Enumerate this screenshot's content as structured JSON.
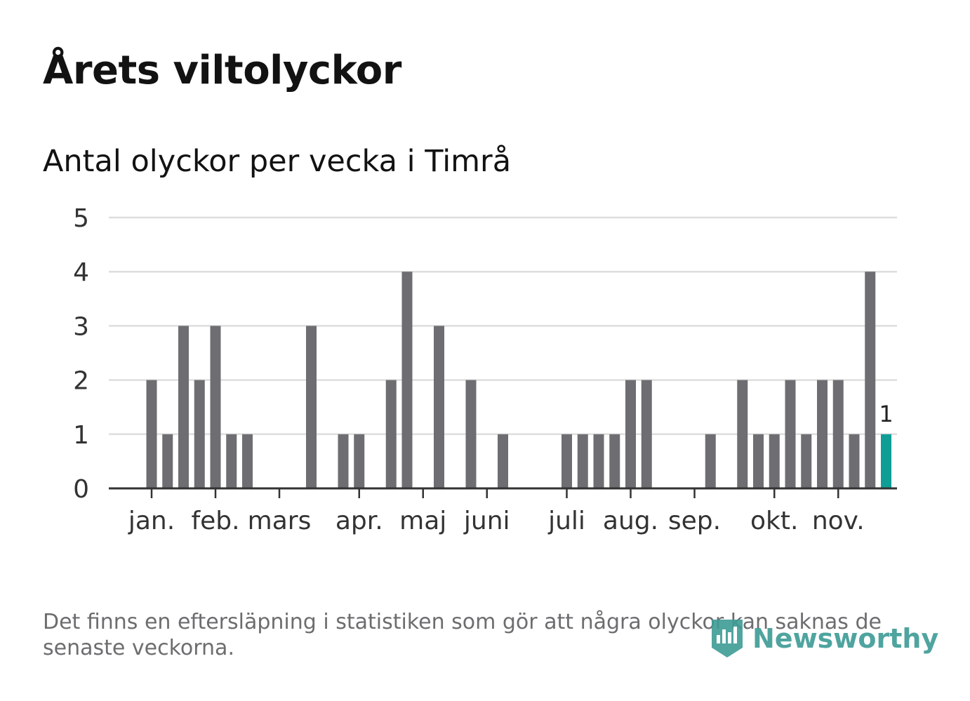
{
  "title": "Årets viltolyckor",
  "subtitle": "Antal olyckor per vecka i Timrå",
  "note": "Det finns en eftersläpning i statistiken som gör att några olyckor kan saknas de senaste veckorna.",
  "brand": "Newsworthy",
  "colors": {
    "bar": "#6e6d72",
    "highlight": "#0f9e95",
    "grid": "#dedede",
    "axis": "#333333",
    "brand": "#3d9b95"
  },
  "chart_data": {
    "type": "bar",
    "title": "Antal olyckor per vecka i Timrå",
    "xlabel": "",
    "ylabel": "",
    "ylim": [
      0,
      5
    ],
    "yticks": [
      "0",
      "1",
      "2",
      "3",
      "4",
      "5"
    ],
    "week_range": [
      1,
      47
    ],
    "weeks": [
      1,
      2,
      3,
      4,
      5,
      6,
      7,
      8,
      9,
      10,
      11,
      12,
      13,
      14,
      15,
      16,
      17,
      18,
      19,
      20,
      21,
      22,
      23,
      24,
      25,
      26,
      27,
      28,
      29,
      30,
      31,
      32,
      33,
      34,
      35,
      36,
      37,
      38,
      39,
      40,
      41,
      42,
      43,
      44,
      45,
      46,
      47
    ],
    "values": [
      2,
      1,
      3,
      2,
      3,
      1,
      1,
      0,
      0,
      0,
      3,
      0,
      1,
      1,
      0,
      2,
      4,
      0,
      3,
      0,
      2,
      0,
      1,
      0,
      0,
      0,
      1,
      1,
      1,
      1,
      2,
      2,
      0,
      0,
      0,
      1,
      0,
      2,
      1,
      1,
      2,
      1,
      2,
      2,
      1,
      4,
      1
    ],
    "highlight_last": true,
    "highlight_label": "1",
    "months": [
      {
        "label": "jan.",
        "week": 1
      },
      {
        "label": "feb.",
        "week": 5
      },
      {
        "label": "mars",
        "week": 9
      },
      {
        "label": "apr.",
        "week": 14
      },
      {
        "label": "maj",
        "week": 18
      },
      {
        "label": "juni",
        "week": 22
      },
      {
        "label": "juli",
        "week": 27
      },
      {
        "label": "aug.",
        "week": 31
      },
      {
        "label": "sep.",
        "week": 35
      },
      {
        "label": "okt.",
        "week": 40
      },
      {
        "label": "nov.",
        "week": 44
      }
    ]
  }
}
